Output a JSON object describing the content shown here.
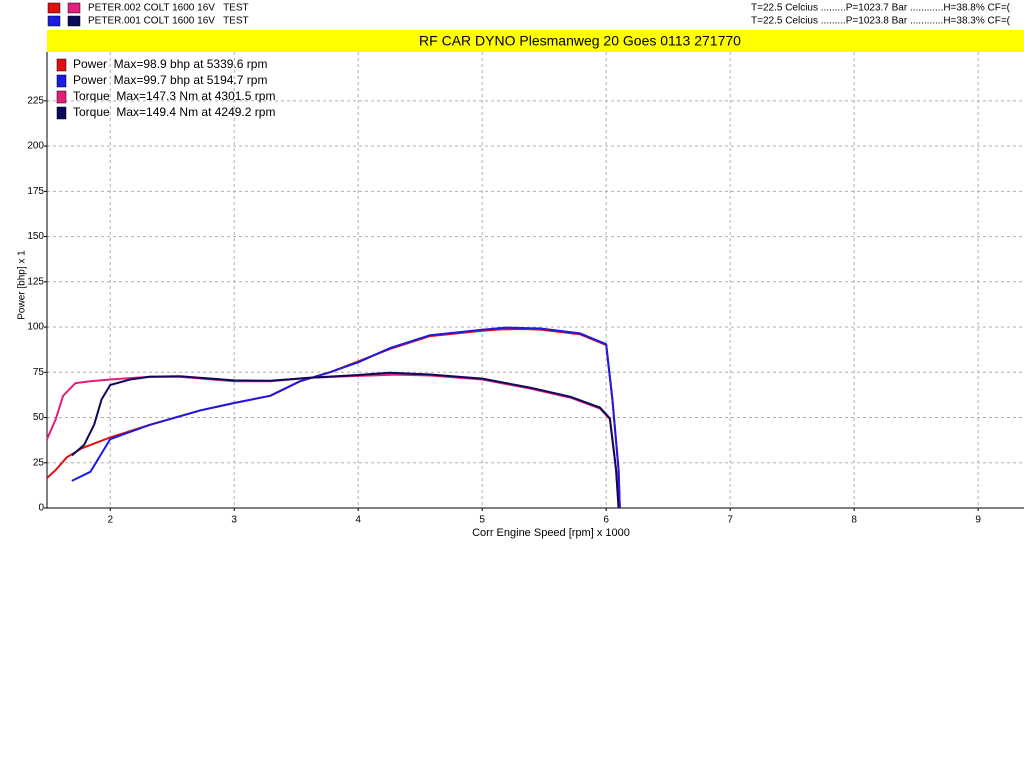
{
  "chart_data": {
    "type": "line",
    "title": "RF CAR DYNO  Plesmanweg 20 Goes  0113 271770",
    "runs": [
      {
        "name": "PETER.002 COLT 1600 16V   TEST",
        "conditions": "T=22.5 Celcius .........P=1023.7 Bar ............H=38.8% CF=("
      },
      {
        "name": "PETER.001 COLT 1600 16V   TEST",
        "conditions": "T=22.5 Celcius .........P=1023.8 Bar ............H=38.3% CF=("
      }
    ],
    "x_label": "Corr Engine Speed [rpm] x 1000",
    "y_label": "Power [bhp] x 1",
    "xlim": [
      1.49,
      9.37
    ],
    "xticks": [
      2,
      3,
      4,
      5,
      6,
      7,
      8,
      9
    ],
    "ylim": [
      0,
      252
    ],
    "yticks": [
      0,
      25,
      50,
      75,
      100,
      125,
      150,
      175,
      200,
      225
    ],
    "grid": true,
    "series": [
      {
        "name": "Power  Max=98.9 bhp at 5339.6 rpm",
        "color": "#e01010",
        "x": [
          1.49,
          1.56,
          1.65,
          1.77,
          2.0,
          2.32,
          2.73,
          3.0,
          3.29,
          3.53,
          3.77,
          4.0,
          4.26,
          4.58,
          5.0,
          5.15,
          5.34,
          5.47,
          5.79,
          6.0,
          6.05,
          6.1,
          6.11
        ],
        "values": [
          16.6,
          21,
          28,
          33,
          39,
          46,
          54,
          58,
          62,
          70,
          75,
          81,
          88,
          95,
          98,
          98.7,
          98.9,
          98.6,
          96,
          90,
          60,
          21,
          0
        ]
      },
      {
        "name": "Power  Max=99.7 bhp at 5194.7 rpm",
        "color": "#1c1ce0",
        "x": [
          1.69,
          1.84,
          1.92,
          2.0,
          2.32,
          2.73,
          3.0,
          3.29,
          3.53,
          3.77,
          4.0,
          4.26,
          4.58,
          5.0,
          5.19,
          5.47,
          5.79,
          6.0,
          6.05,
          6.1,
          6.11
        ],
        "values": [
          15,
          20,
          29,
          38,
          46,
          54,
          58,
          62,
          70,
          75,
          80.5,
          88.5,
          95.5,
          98.5,
          99.7,
          99.2,
          96.5,
          90.5,
          60,
          21,
          0
        ]
      },
      {
        "name": "Torque  Max=147.3 Nm at 4301.5 rpm",
        "color": "#e0207a",
        "x": [
          1.49,
          1.56,
          1.62,
          1.72,
          1.84,
          2.0,
          2.32,
          2.56,
          3.0,
          3.29,
          3.61,
          4.0,
          4.3,
          4.58,
          5.0,
          5.39,
          5.71,
          5.95,
          6.03,
          6.08,
          6.1
        ],
        "values": [
          38,
          49,
          62,
          69,
          70,
          71,
          72.5,
          72.5,
          70,
          70,
          72,
          73,
          73.7,
          73.2,
          71,
          66,
          61,
          55,
          49,
          21,
          0
        ]
      },
      {
        "name": "Torque  Max=149.4 Nm at 4249.2 rpm",
        "color": "#0a0a5a",
        "x": [
          1.69,
          1.79,
          1.87,
          1.93,
          2.0,
          2.16,
          2.32,
          2.56,
          3.0,
          3.29,
          3.61,
          4.0,
          4.25,
          4.58,
          5.0,
          5.39,
          5.71,
          5.95,
          6.03,
          6.08,
          6.1
        ],
        "values": [
          29,
          35,
          46,
          60,
          68,
          71,
          72.5,
          72.8,
          70.5,
          70.3,
          72,
          73.5,
          74.7,
          73.8,
          71.5,
          66.5,
          61.5,
          55.5,
          49.5,
          21,
          0
        ]
      }
    ]
  }
}
